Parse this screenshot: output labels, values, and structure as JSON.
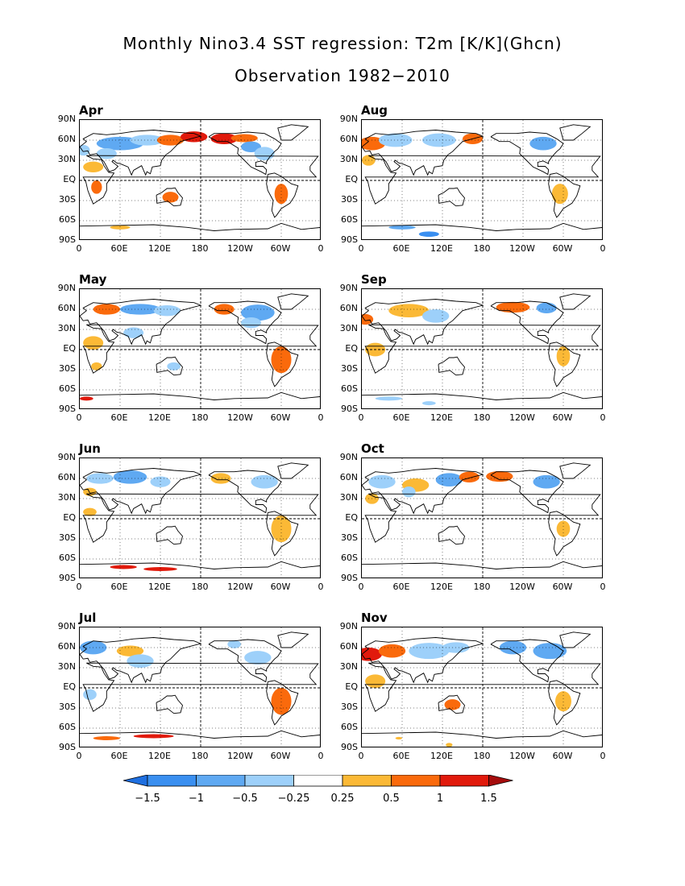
{
  "title_line1": "Monthly Nino3.4 SST regression: T2m [K/K](Ghcn)",
  "title_line2": "Observation 1982−2010",
  "lat_ticks": [
    "90N",
    "60N",
    "30N",
    "EQ",
    "30S",
    "60S",
    "90S"
  ],
  "lon_ticks": [
    "0",
    "60E",
    "120E",
    "180",
    "120W",
    "60W",
    "0"
  ],
  "panels": [
    {
      "month": "Apr"
    },
    {
      "month": "Aug"
    },
    {
      "month": "May"
    },
    {
      "month": "Sep"
    },
    {
      "month": "Jun"
    },
    {
      "month": "Oct"
    },
    {
      "month": "Jul"
    },
    {
      "month": "Nov"
    }
  ],
  "colorbar": {
    "labels": [
      "−1.5",
      "−1",
      "−0.5",
      "−0.25",
      "0.25",
      "0.5",
      "1",
      "1.5"
    ],
    "colors": [
      "#1e6fe0",
      "#3a8ff0",
      "#5fa9f2",
      "#9dd0fa",
      "#ffffff",
      "#fbb936",
      "#fa6a0c",
      "#e11a0c",
      "#a50d0d"
    ]
  }
}
